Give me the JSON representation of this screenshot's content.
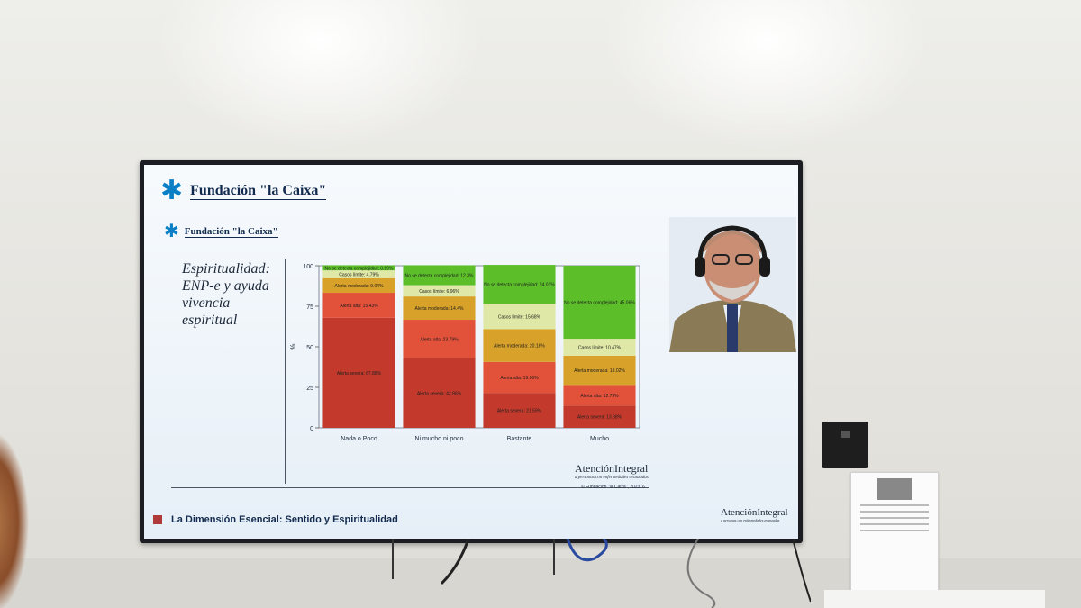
{
  "screen": {
    "header_brand": "Fundación \"la Caixa\"",
    "sub_brand": "Fundación \"la Caixa\"",
    "slide_title_lines": [
      "Espiritualidad:",
      "ENP-e y ayuda",
      "vivencia",
      "espiritual"
    ],
    "footer_logo": {
      "name": "AtenciónIntegral",
      "sub": "a personas con enfermedades avanzadas"
    },
    "copyright": "© Fundación \"la Caixa\", 2023.   6",
    "bottom_logo": {
      "name": "AtenciónIntegral",
      "sub": "a personas con enfermedades avanzadas"
    },
    "bottom_title": "La Dimensión Esencial: Sentido y Espiritualidad",
    "colors": {
      "green": "#5cbf2a",
      "pale": "#dfe8a6",
      "amber": "#d8a12a",
      "red_light": "#e2513a",
      "red_dark": "#c33a2d",
      "brand_blue": "#0b7fc6",
      "navy": "#112a4d"
    }
  },
  "chart_data": {
    "type": "bar",
    "stacked": true,
    "ylabel": "%",
    "ylim": [
      0,
      100
    ],
    "yticks": [
      0,
      25,
      50,
      75,
      100
    ],
    "categories": [
      "Nada o Poco",
      "Ni mucho ni poco",
      "Bastante",
      "Mucho"
    ],
    "series": [
      {
        "name": "Alerta severa",
        "color": "#c33a2d",
        "values": [
          67.88,
          42.86,
          21.59,
          13.68
        ],
        "labels": [
          "Alerta severa: 67.88%",
          "Alerta severa: 42.86%",
          "Alerta severa: 21.59%",
          "Alerta severa: 13.68%"
        ]
      },
      {
        "name": "Alerta alta",
        "color": "#e2513a",
        "values": [
          15.43,
          23.79,
          19.06,
          12.79
        ],
        "labels": [
          "Alerta alta: 15.43%",
          "Alerta alta: 23.79%",
          "Alerta alta: 19.06%",
          "Alerta alta: 12.79%"
        ]
      },
      {
        "name": "Alerta moderada",
        "color": "#d8a12a",
        "values": [
          9.04,
          14.4,
          20.18,
          18.02
        ],
        "labels": [
          "Alerta moderada: 9.04%",
          "Alerta moderada: 14.4%",
          "Alerta moderada: 20.18%",
          "Alerta moderada: 18.02%"
        ]
      },
      {
        "name": "Casos límite",
        "color": "#dfe8a6",
        "values": [
          4.79,
          6.96,
          15.68,
          10.47
        ],
        "labels": [
          "Casos límite: 4.79%",
          "Casos límite: 6.96%",
          "Casos límite: 15.68%",
          "Casos límite: 10.47%"
        ]
      },
      {
        "name": "No se detecta complejidad",
        "color": "#5cbf2a",
        "values": [
          3.19,
          12.3,
          24.01,
          45.06
        ],
        "labels": [
          "No se detecta complejidad: 3.19%",
          "No se detecta complejidad: 12.3%",
          "No se detecta complejidad: 24.01%",
          "No se detecta complejidad: 45.06%"
        ]
      }
    ]
  }
}
